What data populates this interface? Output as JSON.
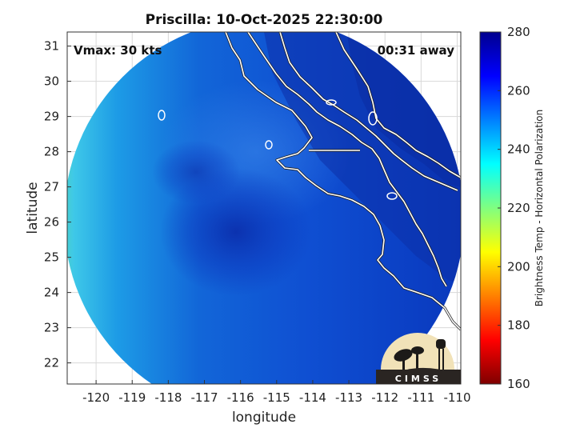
{
  "map": {
    "title": "Priscilla: 10-Oct-2025 22:30:00",
    "vmax_label": "Vmax: 30 kts",
    "time_label": "00:31 away",
    "xlabel": "longitude",
    "ylabel": "latitude",
    "lon_range": [
      -120.8,
      -109.9
    ],
    "lat_range": [
      21.4,
      31.4
    ],
    "lon_ticks": [
      "-120",
      "-119",
      "-118",
      "-117",
      "-116",
      "-115",
      "-114",
      "-113",
      "-112",
      "-111",
      "-110"
    ],
    "lat_ticks": [
      "22",
      "23",
      "24",
      "25",
      "26",
      "27",
      "28",
      "29",
      "30",
      "31"
    ],
    "grid": true,
    "storm_center_approx": {
      "lon": -116.2,
      "lat": 26.2
    }
  },
  "colorbar": {
    "label": "Brightness Temp - Horizontal Polarization",
    "min": 160,
    "max": 280,
    "ticks": [
      "280",
      "260",
      "240",
      "220",
      "200",
      "180",
      "160"
    ],
    "colormap": "jet",
    "colors": [
      "#7f0000",
      "#ff0000",
      "#ff8000",
      "#ffff00",
      "#80ff80",
      "#00ffff",
      "#0080ff",
      "#0000ff",
      "#00008f"
    ]
  },
  "logo": {
    "text": "CIMSS"
  }
}
